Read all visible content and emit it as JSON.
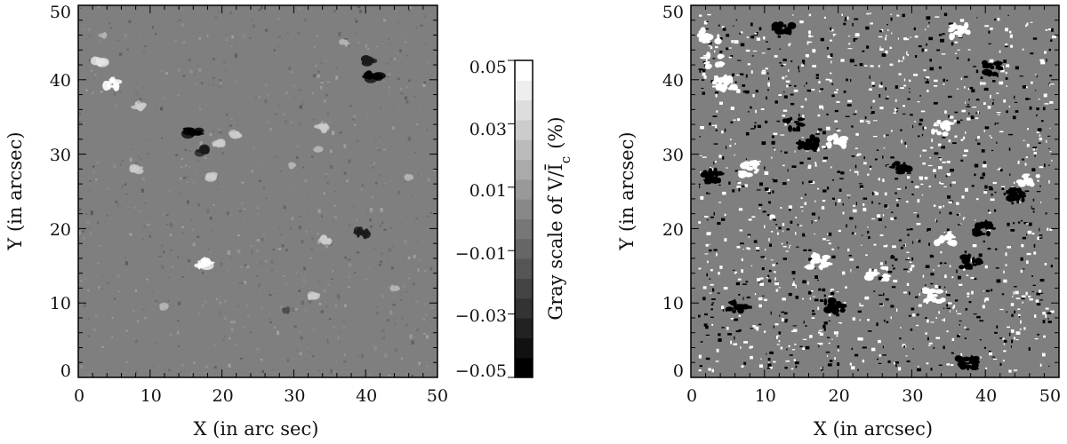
{
  "chart_data": [
    {
      "type": "heatmap",
      "xlabel": "X (in arc sec)",
      "ylabel": "Y (in arcsec)",
      "xlim": [
        0,
        50
      ],
      "ylim": [
        0,
        50
      ],
      "x_ticks": [
        "0",
        "10",
        "20",
        "30",
        "40",
        "50"
      ],
      "y_ticks": [
        "0",
        "10",
        "20",
        "30",
        "40",
        "50"
      ],
      "colorbar": {
        "label": "Gray scale of V/Ī",
        "label_subscript": "c",
        "label_unit": "(%)",
        "range": [
          -0.05,
          0.05
        ],
        "levels": 16,
        "ticks": [
          "0.05",
          "0.03",
          "0.01",
          "−0.01",
          "−0.03",
          "−0.05"
        ],
        "colors": [
          "#000000",
          "#ffffff"
        ]
      },
      "background_color": "#7f7f7f",
      "features": [
        {
          "x": 4.5,
          "y": 39.5,
          "value": 0.05
        },
        {
          "x": 3.0,
          "y": 42.5,
          "value": 0.04
        },
        {
          "x": 8.5,
          "y": 36.5,
          "value": 0.03
        },
        {
          "x": 16.0,
          "y": 33.0,
          "value": -0.05
        },
        {
          "x": 17.5,
          "y": 30.5,
          "value": -0.04
        },
        {
          "x": 19.5,
          "y": 31.5,
          "value": 0.03
        },
        {
          "x": 22.0,
          "y": 32.5,
          "value": 0.03
        },
        {
          "x": 8.0,
          "y": 28.0,
          "value": 0.03
        },
        {
          "x": 18.5,
          "y": 27.0,
          "value": 0.03
        },
        {
          "x": 17.5,
          "y": 15.5,
          "value": 0.05
        },
        {
          "x": 34.0,
          "y": 33.5,
          "value": 0.03
        },
        {
          "x": 33.5,
          "y": 30.5,
          "value": 0.02
        },
        {
          "x": 29.5,
          "y": 28.5,
          "value": 0.02
        },
        {
          "x": 41.0,
          "y": 40.5,
          "value": -0.05
        },
        {
          "x": 40.5,
          "y": 42.5,
          "value": -0.04
        },
        {
          "x": 37.0,
          "y": 45.0,
          "value": 0.02
        },
        {
          "x": 34.5,
          "y": 18.5,
          "value": 0.03
        },
        {
          "x": 39.5,
          "y": 19.5,
          "value": -0.04
        },
        {
          "x": 32.5,
          "y": 11.0,
          "value": 0.03
        },
        {
          "x": 3.5,
          "y": 46.0,
          "value": 0.02
        },
        {
          "x": 12.0,
          "y": 9.5,
          "value": 0.02
        },
        {
          "x": 46.0,
          "y": 27.0,
          "value": 0.02
        },
        {
          "x": 29.0,
          "y": 9.0,
          "value": -0.02
        },
        {
          "x": 44.0,
          "y": 12.0,
          "value": 0.02
        }
      ]
    },
    {
      "type": "heatmap",
      "xlabel": "X (in arcsec)",
      "ylabel": "Y (in arcsec)",
      "xlim": [
        0,
        50
      ],
      "ylim": [
        0,
        50
      ],
      "x_ticks": [
        "0",
        "10",
        "20",
        "30",
        "40",
        "50"
      ],
      "y_ticks": [
        "0",
        "10",
        "20",
        "30",
        "40",
        "50"
      ],
      "background_color": "#7f7f7f",
      "colors": [
        "#000000",
        "#ffffff"
      ],
      "features": [
        {
          "x": 4.5,
          "y": 39.5,
          "value": 1
        },
        {
          "x": 3.0,
          "y": 42.5,
          "value": 1
        },
        {
          "x": 2.5,
          "y": 46.0,
          "value": 1
        },
        {
          "x": 12.5,
          "y": 47.0,
          "value": -1
        },
        {
          "x": 16.0,
          "y": 31.5,
          "value": -1
        },
        {
          "x": 19.5,
          "y": 31.5,
          "value": 1
        },
        {
          "x": 14.0,
          "y": 34.0,
          "value": -1
        },
        {
          "x": 8.0,
          "y": 28.0,
          "value": 1
        },
        {
          "x": 17.5,
          "y": 15.5,
          "value": 1
        },
        {
          "x": 19.5,
          "y": 9.5,
          "value": -1
        },
        {
          "x": 28.5,
          "y": 28.0,
          "value": -1
        },
        {
          "x": 34.0,
          "y": 33.5,
          "value": 1
        },
        {
          "x": 41.0,
          "y": 41.5,
          "value": -1
        },
        {
          "x": 36.5,
          "y": 46.5,
          "value": 1
        },
        {
          "x": 34.5,
          "y": 18.5,
          "value": 1
        },
        {
          "x": 40.0,
          "y": 20.0,
          "value": -1
        },
        {
          "x": 38.0,
          "y": 15.5,
          "value": -1
        },
        {
          "x": 44.0,
          "y": 24.5,
          "value": -1
        },
        {
          "x": 3.0,
          "y": 27.0,
          "value": -1
        },
        {
          "x": 46.0,
          "y": 26.5,
          "value": 1
        },
        {
          "x": 33.0,
          "y": 11.0,
          "value": 1
        },
        {
          "x": 37.5,
          "y": 2.0,
          "value": -1
        },
        {
          "x": 6.5,
          "y": 9.5,
          "value": -1
        },
        {
          "x": 25.5,
          "y": 14.0,
          "value": 1
        }
      ]
    }
  ]
}
